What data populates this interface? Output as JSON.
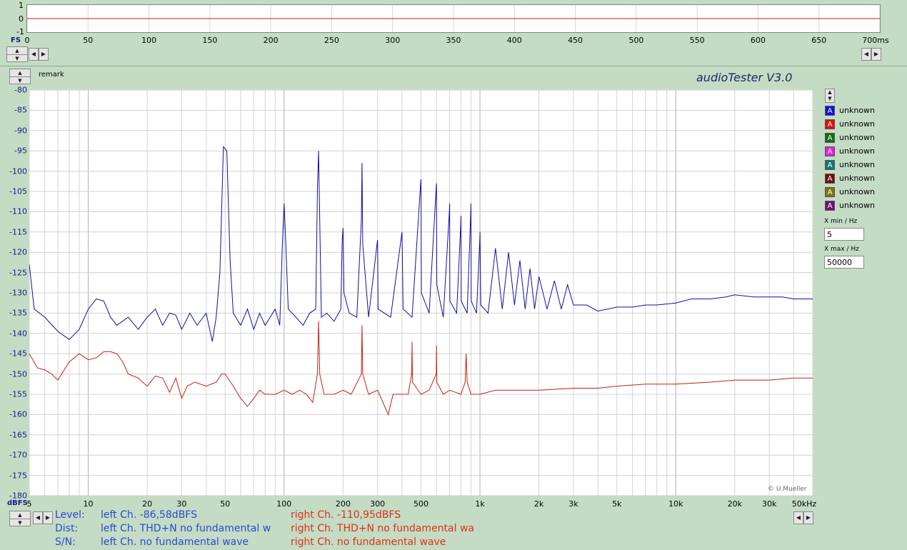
{
  "scope": {
    "y_labels": [
      "1",
      "0",
      "-1"
    ],
    "x_labels": [
      "0",
      "50",
      "100",
      "150",
      "200",
      "250",
      "300",
      "350",
      "400",
      "450",
      "500",
      "550",
      "600",
      "650",
      "700ms"
    ],
    "fs_label": "FS"
  },
  "header": {
    "remark": "remark",
    "title": "audioTester  V3.0"
  },
  "legend": [
    {
      "letter": "A",
      "label": "unknown",
      "color": "#1010e0"
    },
    {
      "letter": "A",
      "label": "unknown",
      "color": "#e01010"
    },
    {
      "letter": "A",
      "label": "unknown",
      "color": "#107010"
    },
    {
      "letter": "A",
      "label": "unknown",
      "color": "#e020e0"
    },
    {
      "letter": "A",
      "label": "unknown",
      "color": "#107878"
    },
    {
      "letter": "A",
      "label": "unknown",
      "color": "#701010"
    },
    {
      "letter": "A",
      "label": "unknown",
      "color": "#787810"
    },
    {
      "letter": "A",
      "label": "unknown",
      "color": "#701070"
    }
  ],
  "range": {
    "xmin_label": "X min / Hz",
    "xmin_value": "5",
    "xmax_label": "X max / Hz",
    "xmax_value": "50000"
  },
  "chart_data": {
    "type": "line",
    "title": "",
    "xlabel": "kHz",
    "ylabel": "dBFS",
    "xscale": "log",
    "xlim": [
      5,
      50000
    ],
    "ylim": [
      -180,
      -80
    ],
    "grid": true,
    "copyright": "© U.Mueller",
    "y_ticks": [
      "-80",
      "-85",
      "-90",
      "-95",
      "-100",
      "-105",
      "-110",
      "-115",
      "-120",
      "-125",
      "-130",
      "-135",
      "-140",
      "-145",
      "-150",
      "-155",
      "-160",
      "-165",
      "-170",
      "-175",
      "-180"
    ],
    "x_ticks": [
      {
        "v": 5,
        "label": "5"
      },
      {
        "v": 10,
        "label": "10"
      },
      {
        "v": 20,
        "label": "20"
      },
      {
        "v": 30,
        "label": "30"
      },
      {
        "v": 50,
        "label": "50"
      },
      {
        "v": 100,
        "label": "100"
      },
      {
        "v": 200,
        "label": "200"
      },
      {
        "v": 300,
        "label": "300"
      },
      {
        "v": 500,
        "label": "500"
      },
      {
        "v": 1000,
        "label": "1k"
      },
      {
        "v": 2000,
        "label": "2k"
      },
      {
        "v": 3000,
        "label": "3k"
      },
      {
        "v": 5000,
        "label": "5k"
      },
      {
        "v": 10000,
        "label": "10k"
      },
      {
        "v": 20000,
        "label": "20k"
      },
      {
        "v": 30000,
        "label": "30k"
      },
      {
        "v": 50000,
        "label": "50kHz"
      }
    ],
    "series": [
      {
        "name": "left Ch.",
        "color": "#1010a0",
        "points": [
          [
            5,
            -123
          ],
          [
            5.3,
            -134
          ],
          [
            6,
            -136
          ],
          [
            7,
            -139.5
          ],
          [
            8,
            -141.5
          ],
          [
            9,
            -139
          ],
          [
            10,
            -134
          ],
          [
            11,
            -131.5
          ],
          [
            12,
            -132
          ],
          [
            13,
            -136
          ],
          [
            14,
            -138
          ],
          [
            16,
            -136
          ],
          [
            18,
            -139
          ],
          [
            20,
            -136
          ],
          [
            22,
            -134
          ],
          [
            24,
            -138
          ],
          [
            26,
            -135
          ],
          [
            28,
            -135.5
          ],
          [
            30,
            -139
          ],
          [
            33,
            -135
          ],
          [
            36,
            -138
          ],
          [
            40,
            -135
          ],
          [
            43,
            -142
          ],
          [
            45,
            -136
          ],
          [
            47,
            -125
          ],
          [
            49,
            -94
          ],
          [
            51,
            -95
          ],
          [
            53,
            -122
          ],
          [
            55,
            -135
          ],
          [
            60,
            -138
          ],
          [
            65,
            -134
          ],
          [
            70,
            -139
          ],
          [
            75,
            -135
          ],
          [
            80,
            -138
          ],
          [
            90,
            -134
          ],
          [
            95,
            -138
          ],
          [
            98,
            -118
          ],
          [
            100,
            -108
          ],
          [
            102,
            -118
          ],
          [
            105,
            -134
          ],
          [
            115,
            -136
          ],
          [
            125,
            -138
          ],
          [
            135,
            -135
          ],
          [
            145,
            -134
          ],
          [
            148,
            -104
          ],
          [
            150,
            -95
          ],
          [
            152,
            -112
          ],
          [
            155,
            -136
          ],
          [
            165,
            -135
          ],
          [
            180,
            -137
          ],
          [
            195,
            -134
          ],
          [
            198,
            -117
          ],
          [
            200,
            -114
          ],
          [
            202,
            -130
          ],
          [
            215,
            -135
          ],
          [
            235,
            -136
          ],
          [
            248,
            -112
          ],
          [
            250,
            -98
          ],
          [
            252,
            -118
          ],
          [
            270,
            -136
          ],
          [
            298,
            -118
          ],
          [
            300,
            -117
          ],
          [
            302,
            -134
          ],
          [
            350,
            -136
          ],
          [
            395,
            -117
          ],
          [
            400,
            -115
          ],
          [
            405,
            -134
          ],
          [
            450,
            -136
          ],
          [
            498,
            -103
          ],
          [
            500,
            -102
          ],
          [
            502,
            -130
          ],
          [
            550,
            -135
          ],
          [
            598,
            -104
          ],
          [
            600,
            -103
          ],
          [
            602,
            -128
          ],
          [
            650,
            -136
          ],
          [
            698,
            -110
          ],
          [
            700,
            -108
          ],
          [
            702,
            -132
          ],
          [
            760,
            -135
          ],
          [
            798,
            -113
          ],
          [
            800,
            -111
          ],
          [
            802,
            -132
          ],
          [
            860,
            -135
          ],
          [
            898,
            -110
          ],
          [
            900,
            -108
          ],
          [
            902,
            -132
          ],
          [
            960,
            -135
          ],
          [
            998,
            -117
          ],
          [
            1000,
            -115
          ],
          [
            1010,
            -133
          ],
          [
            1100,
            -135
          ],
          [
            1200,
            -119
          ],
          [
            1300,
            -134
          ],
          [
            1400,
            -120
          ],
          [
            1500,
            -133
          ],
          [
            1600,
            -122
          ],
          [
            1700,
            -134
          ],
          [
            1800,
            -124
          ],
          [
            1900,
            -134
          ],
          [
            2000,
            -126
          ],
          [
            2200,
            -134
          ],
          [
            2400,
            -127
          ],
          [
            2600,
            -134
          ],
          [
            2800,
            -128
          ],
          [
            3000,
            -133
          ],
          [
            3500,
            -133
          ],
          [
            4000,
            -134.5
          ],
          [
            5000,
            -133.5
          ],
          [
            6000,
            -133.5
          ],
          [
            7000,
            -133
          ],
          [
            8000,
            -133
          ],
          [
            10000,
            -132.5
          ],
          [
            12000,
            -131.5
          ],
          [
            15000,
            -131.5
          ],
          [
            18000,
            -131
          ],
          [
            20000,
            -130.5
          ],
          [
            25000,
            -131
          ],
          [
            30000,
            -131
          ],
          [
            35000,
            -131
          ],
          [
            40000,
            -131.5
          ],
          [
            45000,
            -131.5
          ],
          [
            50000,
            -131.5
          ]
        ]
      },
      {
        "name": "right Ch.",
        "color": "#c82010",
        "points": [
          [
            5,
            -145
          ],
          [
            5.5,
            -148.5
          ],
          [
            6,
            -149
          ],
          [
            6.5,
            -150
          ],
          [
            7,
            -151.5
          ],
          [
            8,
            -147
          ],
          [
            9,
            -145
          ],
          [
            10,
            -146.5
          ],
          [
            11,
            -146
          ],
          [
            12,
            -144.5
          ],
          [
            13,
            -144.5
          ],
          [
            14,
            -145
          ],
          [
            15,
            -147
          ],
          [
            16,
            -150
          ],
          [
            18,
            -151
          ],
          [
            20,
            -153
          ],
          [
            22,
            -150.5
          ],
          [
            24,
            -151
          ],
          [
            26,
            -154.5
          ],
          [
            28,
            -151
          ],
          [
            30,
            -156
          ],
          [
            32,
            -153
          ],
          [
            35,
            -152
          ],
          [
            40,
            -153
          ],
          [
            45,
            -152
          ],
          [
            48,
            -150
          ],
          [
            50,
            -150
          ],
          [
            55,
            -153
          ],
          [
            60,
            -156
          ],
          [
            65,
            -158
          ],
          [
            70,
            -156
          ],
          [
            75,
            -154
          ],
          [
            80,
            -155
          ],
          [
            90,
            -155
          ],
          [
            100,
            -154
          ],
          [
            110,
            -155
          ],
          [
            120,
            -154
          ],
          [
            130,
            -155
          ],
          [
            140,
            -157
          ],
          [
            148,
            -150
          ],
          [
            150,
            -137
          ],
          [
            152,
            -150
          ],
          [
            160,
            -155
          ],
          [
            180,
            -155
          ],
          [
            200,
            -154
          ],
          [
            220,
            -155
          ],
          [
            248,
            -150
          ],
          [
            250,
            -138
          ],
          [
            252,
            -150
          ],
          [
            270,
            -155
          ],
          [
            300,
            -154
          ],
          [
            340,
            -160
          ],
          [
            360,
            -155
          ],
          [
            400,
            -155
          ],
          [
            430,
            -155
          ],
          [
            448,
            -150
          ],
          [
            450,
            -142
          ],
          [
            452,
            -152
          ],
          [
            500,
            -155
          ],
          [
            550,
            -154
          ],
          [
            598,
            -150
          ],
          [
            600,
            -143
          ],
          [
            602,
            -152
          ],
          [
            650,
            -155
          ],
          [
            700,
            -154
          ],
          [
            800,
            -155
          ],
          [
            840,
            -152
          ],
          [
            850,
            -145
          ],
          [
            860,
            -152
          ],
          [
            900,
            -155
          ],
          [
            1000,
            -155
          ],
          [
            1200,
            -154
          ],
          [
            1500,
            -154
          ],
          [
            2000,
            -154
          ],
          [
            3000,
            -153.5
          ],
          [
            4000,
            -153.5
          ],
          [
            5000,
            -153
          ],
          [
            7000,
            -152.5
          ],
          [
            10000,
            -152.5
          ],
          [
            15000,
            -152
          ],
          [
            20000,
            -151.5
          ],
          [
            30000,
            -151.5
          ],
          [
            40000,
            -151
          ],
          [
            50000,
            -151
          ]
        ]
      }
    ]
  },
  "status": {
    "y_unit": "dBFS",
    "row_labels": [
      "Level:",
      "Dist:",
      "S/N:"
    ],
    "left": [
      "left Ch. -86,58dBFS",
      "left Ch. THD+N  no fundamental w",
      "left Ch.  no fundamental wave"
    ],
    "right": [
      "right Ch. -110,95dBFS",
      "right Ch. THD+N  no fundamental wa",
      "right Ch.  no fundamental wave"
    ]
  }
}
